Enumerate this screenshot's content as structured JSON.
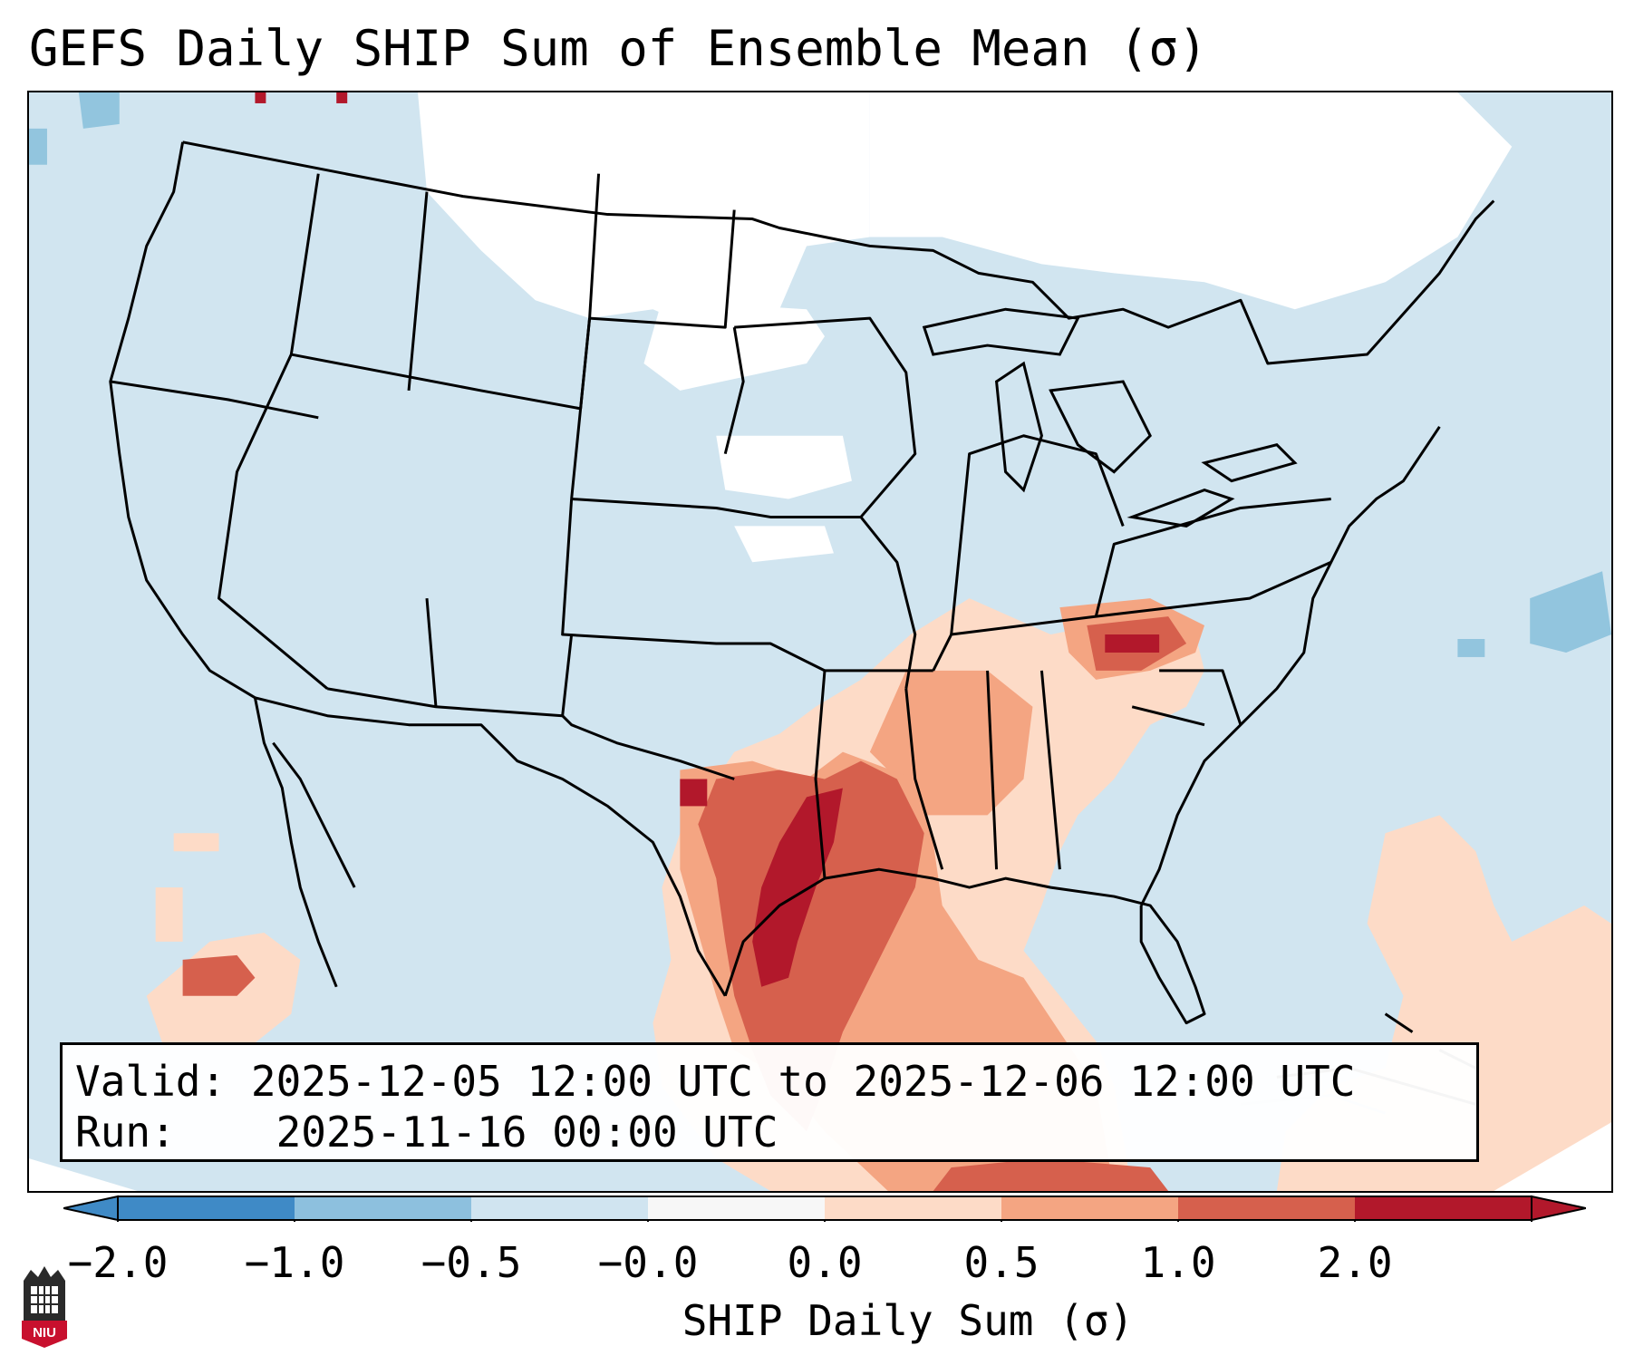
{
  "header": {
    "title": "GEFS Daily SHIP Sum of Ensemble Mean (σ)"
  },
  "info_box": {
    "valid_label": "Valid:",
    "valid_value": "2025-12-05 12:00 UTC to 2025-12-06 12:00 UTC",
    "run_label": "Run:",
    "run_value": "2025-11-16 00:00 UTC"
  },
  "colorbar": {
    "label": "SHIP Daily Sum (σ)",
    "ticks": [
      "−2.0",
      "−1.0",
      "−0.5",
      "−0.0",
      "0.0",
      "0.5",
      "1.0",
      "2.0"
    ],
    "colors": [
      "#3f8ac6",
      "#8dc0de",
      "#d0e4f0",
      "#f7f7f7",
      "#fddbc7",
      "#f4a582",
      "#d6604d",
      "#b2182b"
    ],
    "extend": "both"
  },
  "map": {
    "region": "CONUS",
    "ocean_land_color": "#d1e5f0",
    "zero_color": "#ffffff",
    "border_color": "#000000"
  },
  "logo": {
    "text": "NIU"
  }
}
